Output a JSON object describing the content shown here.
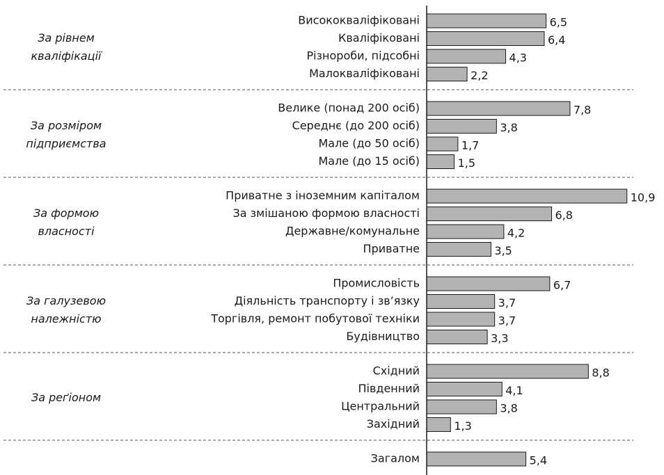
{
  "chart_data": {
    "type": "bar",
    "orientation": "horizontal",
    "color": "#b3b3b3",
    "xlim": [
      0,
      11
    ],
    "groups": [
      {
        "name_lines": [
          "За рівнем",
          "кваліфікації"
        ],
        "categories": [
          "Висококваліфіковані",
          "Кваліфіковані",
          "Різнороби, підсобні",
          "Малокваліфіковані"
        ],
        "values": [
          6.5,
          6.4,
          4.3,
          2.2
        ],
        "value_labels": [
          "6,5",
          "6,4",
          "4,3",
          "2,2"
        ]
      },
      {
        "name_lines": [
          "За розміром",
          "підприємства"
        ],
        "categories": [
          "Велике (понад 200 осіб)",
          "Середнє (до 200 осіб)",
          "Мале (до 50 осіб)",
          "Мале (до 15 осіб)"
        ],
        "values": [
          7.8,
          3.8,
          1.7,
          1.5
        ],
        "value_labels": [
          "7,8",
          "3,8",
          "1,7",
          "1,5"
        ]
      },
      {
        "name_lines": [
          "За формою",
          "власності"
        ],
        "categories": [
          "Приватне з іноземним капіталом",
          "За змішаною формою власності",
          "Державне/комунальне",
          "Приватне"
        ],
        "values": [
          10.9,
          6.8,
          4.2,
          3.5
        ],
        "value_labels": [
          "10,9",
          "6,8",
          "4,2",
          "3,5"
        ]
      },
      {
        "name_lines": [
          "За галузевою",
          "належністю"
        ],
        "categories": [
          "Промисловість",
          "Діяльність транспорту і зв’язку",
          "Торгівля, ремонт побутової техніки",
          "Будівництво"
        ],
        "values": [
          6.7,
          3.7,
          3.7,
          3.3
        ],
        "value_labels": [
          "6,7",
          "3,7",
          "3,7",
          "3,3"
        ]
      },
      {
        "name_lines": [
          "За реґіоном"
        ],
        "categories": [
          "Східний",
          "Південний",
          "Центральний",
          "Західний"
        ],
        "values": [
          8.8,
          4.1,
          3.8,
          1.3
        ],
        "value_labels": [
          "8,8",
          "4,1",
          "3,8",
          "1,3"
        ]
      },
      {
        "categories": [
          "Загалом"
        ],
        "values": [
          5.4
        ],
        "value_labels": [
          "5,4"
        ]
      }
    ]
  }
}
